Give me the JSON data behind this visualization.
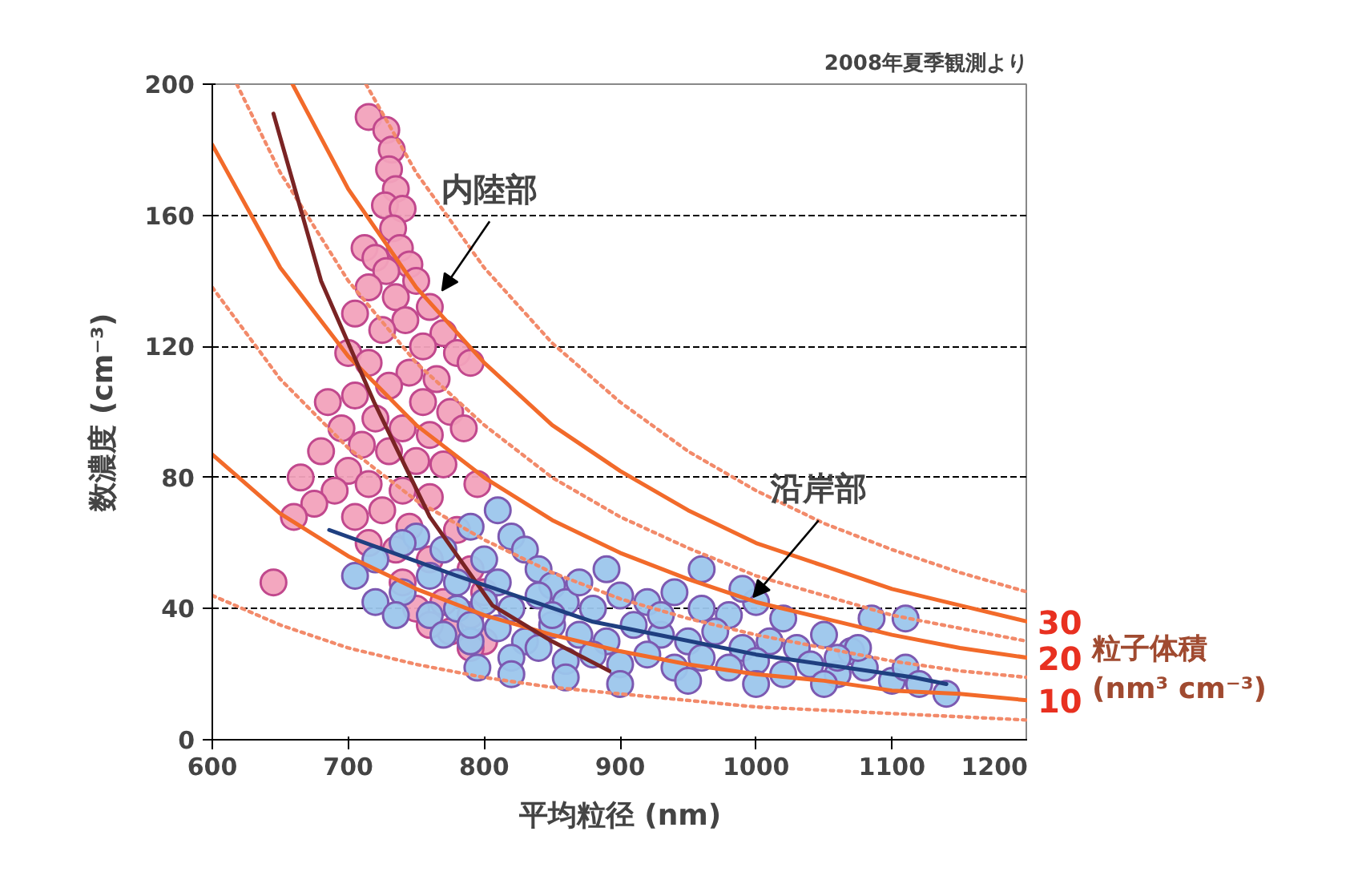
{
  "chart_data": {
    "type": "scatter",
    "subtitle": "2008年夏季観測より",
    "xlabel": "平均粒径 (nm)",
    "ylabel": "数濃度 (cm⁻³)",
    "xlim": [
      600,
      1200
    ],
    "ylim": [
      0,
      200
    ],
    "xticks": [
      600,
      700,
      800,
      900,
      1000,
      1100,
      1200
    ],
    "yticks": [
      0,
      40,
      80,
      120,
      160,
      200
    ],
    "grid": "y",
    "marker": "circle",
    "annotations": [
      {
        "text": "内陸部",
        "x": 769,
        "y": 137
      },
      {
        "text": "沿岸部",
        "x": 998,
        "y": 43.5
      },
      "粒子体積 (nm³ cm⁻³)"
    ],
    "series": [
      {
        "type": "line",
        "marker": "none",
        "line_style": "dotted",
        "color": "#f28a6a",
        "x": [
          600,
          650,
          700,
          750,
          800,
          850,
          900,
          950,
          1000,
          1050,
          1100,
          1150,
          1200
        ],
        "values": [
          44,
          35,
          28,
          23,
          19,
          16,
          14,
          12,
          10,
          9,
          8,
          7,
          6
        ]
      },
      {
        "type": "line",
        "marker": "none",
        "line_style": "dotted",
        "color": "#f28a6a",
        "x": [
          600,
          650,
          700,
          750,
          800,
          850,
          900,
          950,
          1000,
          1050,
          1100,
          1150,
          1200
        ],
        "values": [
          138,
          110,
          89,
          73,
          61,
          51,
          43,
          37,
          32,
          28,
          24,
          21,
          19
        ]
      },
      {
        "type": "line",
        "marker": "none",
        "line_style": "dotted",
        "color": "#f28a6a",
        "x": [
          618,
          650,
          700,
          750,
          800,
          850,
          900,
          950,
          1000,
          1050,
          1100,
          1150,
          1200
        ],
        "values": [
          200,
          173,
          140,
          115,
          96,
          80,
          68,
          58.5,
          50,
          44,
          38,
          34,
          30
        ]
      },
      {
        "type": "line",
        "marker": "none",
        "line_style": "dotted",
        "color": "#f28a6a",
        "x": [
          713,
          750,
          800,
          850,
          900,
          950,
          1000,
          1050,
          1100,
          1150,
          1200
        ],
        "values": [
          200,
          173,
          144,
          121,
          103,
          88,
          76,
          66,
          58,
          51,
          45
        ]
      },
      {
        "color": "#f2a2bc",
        "x": [
          715,
          728,
          732,
          730,
          735,
          727,
          740,
          733,
          738,
          712,
          720,
          745,
          728,
          750,
          715,
          735,
          760,
          705,
          742,
          725,
          770,
          755,
          780,
          700,
          715,
          745,
          765,
          790,
          730,
          705,
          685,
          755,
          775,
          720,
          740,
          695,
          760,
          785,
          710,
          730,
          680,
          750,
          770,
          700,
          715,
          665,
          690,
          740,
          760,
          795,
          725,
          705,
          675,
          660,
          745,
          780,
          735,
          715,
          760,
          790,
          740,
          770,
          750,
          790,
          775,
          760,
          645,
          800,
          800,
          790
        ],
        "values": [
          190,
          186,
          180,
          174,
          168,
          163,
          162,
          156,
          150,
          150,
          147,
          145,
          143,
          140,
          138,
          135,
          132,
          130,
          128,
          125,
          124,
          120,
          118,
          118,
          115,
          112,
          110,
          115,
          108,
          105,
          103,
          103,
          100,
          98,
          95,
          95,
          93,
          95,
          90,
          88,
          88,
          85,
          84,
          82,
          78,
          80,
          76,
          76,
          74,
          78,
          70,
          68,
          72,
          68,
          65,
          64,
          58,
          60,
          55,
          52,
          48,
          42,
          40,
          38,
          33,
          35,
          48,
          45,
          30,
          28
        ]
      },
      {
        "color": "#9cc6ec",
        "x": [
          750,
          770,
          790,
          810,
          820,
          800,
          830,
          760,
          780,
          740,
          810,
          840,
          850,
          720,
          735,
          760,
          780,
          800,
          820,
          840,
          860,
          870,
          880,
          900,
          920,
          940,
          960,
          980,
          1000,
          1020,
          770,
          790,
          810,
          830,
          850,
          870,
          890,
          910,
          930,
          950,
          970,
          990,
          1010,
          1030,
          1050,
          1070,
          820,
          840,
          860,
          880,
          900,
          920,
          940,
          960,
          980,
          1000,
          1020,
          1040,
          1060,
          1080,
          1100,
          1110,
          1140,
          1085,
          1110,
          1075,
          1050,
          1000,
          950,
          900,
          860,
          820,
          795,
          720,
          705,
          740,
          790,
          850,
          930,
          1060,
          1120,
          990,
          960,
          890
        ],
        "values": [
          62,
          58,
          65,
          70,
          62,
          55,
          58,
          50,
          48,
          45,
          48,
          52,
          47,
          42,
          38,
          38,
          40,
          42,
          40,
          44,
          42,
          48,
          40,
          44,
          42,
          45,
          40,
          38,
          42,
          37,
          32,
          30,
          34,
          30,
          35,
          32,
          30,
          35,
          32,
          30,
          33,
          28,
          30,
          28,
          32,
          27,
          25,
          28,
          24,
          26,
          23,
          26,
          22,
          25,
          22,
          24,
          20,
          23,
          20,
          22,
          18,
          22,
          14,
          37,
          37,
          28,
          17,
          17,
          18,
          17,
          19,
          20,
          22,
          55,
          50,
          60,
          35,
          38,
          38,
          25,
          17,
          46,
          52,
          52
        ]
      },
      {
        "type": "line",
        "marker": "none",
        "line_style": "solid",
        "name": "10",
        "color": "#f26a2a",
        "x": [
          600,
          650,
          700,
          750,
          800,
          850,
          900,
          950,
          1000,
          1050,
          1100,
          1150,
          1200
        ],
        "values": [
          87,
          69,
          56,
          46,
          38,
          32,
          27,
          23,
          20,
          18,
          15,
          14,
          12
        ]
      },
      {
        "type": "line",
        "marker": "none",
        "line_style": "solid",
        "name": "20",
        "color": "#f26a2a",
        "x": [
          600,
          650,
          700,
          750,
          800,
          850,
          900,
          950,
          1000,
          1050,
          1100,
          1150,
          1200
        ],
        "values": [
          181.5,
          144,
          117,
          96,
          80,
          67,
          57,
          49,
          42,
          37,
          32,
          28,
          25
        ]
      },
      {
        "type": "line",
        "marker": "none",
        "line_style": "solid",
        "name": "30",
        "color": "#f26a2a",
        "x": [
          659,
          700,
          750,
          800,
          850,
          900,
          950,
          1000,
          1050,
          1100,
          1150,
          1200
        ],
        "values": [
          200,
          168,
          138,
          115,
          96,
          82,
          70,
          60,
          53,
          46,
          41,
          36
        ]
      },
      {
        "type": "line",
        "marker": "none",
        "line_style": "solid",
        "color": "#7a2424",
        "x": [
          645,
          680,
          719,
          760,
          806,
          850,
          892
        ],
        "values": [
          191,
          140,
          103,
          68,
          41,
          30,
          21
        ]
      },
      {
        "type": "line",
        "marker": "none",
        "line_style": "solid",
        "color": "#1f3f80",
        "x": [
          686,
          780,
          880,
          1000,
          1116,
          1140
        ],
        "values": [
          64,
          50,
          36,
          26,
          19,
          17
        ]
      }
    ]
  }
}
